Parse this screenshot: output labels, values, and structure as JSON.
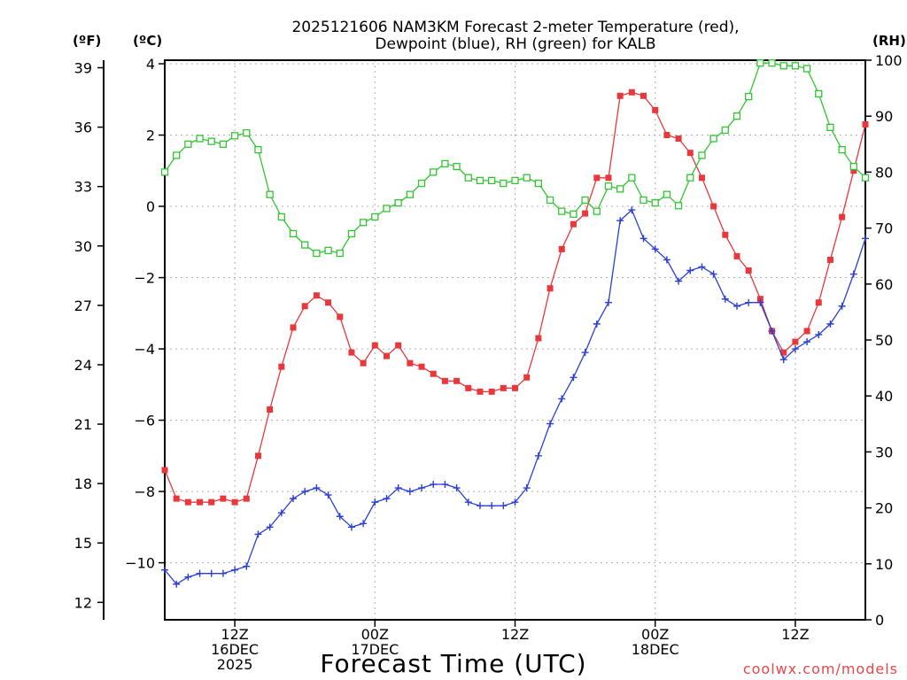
{
  "chart_data": {
    "type": "line",
    "title_line1": "2025121606 NAM3KM Forecast 2-meter Temperature (red),",
    "title_line2": "Dewpoint (blue), RH (green) for KALB",
    "xlabel": "Forecast Time (UTC)",
    "credit": "coolwx.com/models",
    "unit_f": "(ºF)",
    "unit_c": "(ºC)",
    "unit_rh": "(RH)",
    "x_range_hours": [
      0,
      60
    ],
    "y_celsius_range": [
      -11.6,
      4.1
    ],
    "y_rh_range": [
      0,
      100
    ],
    "x_ticks": [
      {
        "hour": 6,
        "lines": [
          "12Z",
          "16DEC",
          "2025"
        ]
      },
      {
        "hour": 18,
        "lines": [
          "00Z",
          "17DEC"
        ]
      },
      {
        "hour": 30,
        "lines": [
          "12Z"
        ]
      },
      {
        "hour": 42,
        "lines": [
          "00Z",
          "18DEC"
        ]
      },
      {
        "hour": 54,
        "lines": [
          "12Z"
        ]
      }
    ],
    "celsius_ticks": [
      {
        "value": 4,
        "label": "4"
      },
      {
        "value": 2,
        "label": "2"
      },
      {
        "value": 0,
        "label": "0"
      },
      {
        "value": -2,
        "label": "−2"
      },
      {
        "value": -4,
        "label": "−4"
      },
      {
        "value": -6,
        "label": "−6"
      },
      {
        "value": -8,
        "label": "−8"
      },
      {
        "value": -10,
        "label": "−10"
      }
    ],
    "fahrenheit_ticks": [
      {
        "value": 39,
        "label": "39"
      },
      {
        "value": 36,
        "label": "36"
      },
      {
        "value": 33,
        "label": "33"
      },
      {
        "value": 30,
        "label": "30"
      },
      {
        "value": 27,
        "label": "27"
      },
      {
        "value": 24,
        "label": "24"
      },
      {
        "value": 21,
        "label": "21"
      },
      {
        "value": 18,
        "label": "18"
      },
      {
        "value": 15,
        "label": "15"
      },
      {
        "value": 12,
        "label": "12"
      }
    ],
    "rh_ticks": [
      {
        "value": 100,
        "label": "100"
      },
      {
        "value": 90,
        "label": "90"
      },
      {
        "value": 80,
        "label": "80"
      },
      {
        "value": 70,
        "label": "70"
      },
      {
        "value": 60,
        "label": "60"
      },
      {
        "value": 50,
        "label": "50"
      },
      {
        "value": 40,
        "label": "40"
      },
      {
        "value": 30,
        "label": "30"
      },
      {
        "value": 20,
        "label": "20"
      },
      {
        "value": 10,
        "label": "10"
      },
      {
        "value": 0,
        "label": "0"
      }
    ],
    "hours": [
      0,
      1,
      2,
      3,
      4,
      5,
      6,
      7,
      8,
      9,
      10,
      11,
      12,
      13,
      14,
      15,
      16,
      17,
      18,
      19,
      20,
      21,
      22,
      23,
      24,
      25,
      26,
      27,
      28,
      29,
      30,
      31,
      32,
      33,
      34,
      35,
      36,
      37,
      38,
      39,
      40,
      41,
      42,
      43,
      44,
      45,
      46,
      47,
      48,
      49,
      50,
      51,
      52,
      53,
      54,
      55,
      56,
      57,
      58,
      59,
      60
    ],
    "series": [
      {
        "name": "Temperature (°C)",
        "color": "#e8383c",
        "marker": "filled-square",
        "axis": "celsius",
        "values": [
          -7.4,
          -8.2,
          -8.3,
          -8.3,
          -8.3,
          -8.2,
          -8.3,
          -8.2,
          -7.0,
          -5.7,
          -4.5,
          -3.4,
          -2.8,
          -2.5,
          -2.7,
          -3.1,
          -4.1,
          -4.4,
          -3.9,
          -4.2,
          -3.9,
          -4.4,
          -4.5,
          -4.7,
          -4.9,
          -4.9,
          -5.1,
          -5.2,
          -5.2,
          -5.1,
          -5.1,
          -4.8,
          -3.7,
          -2.3,
          -1.2,
          -0.5,
          -0.2,
          0.8,
          0.8,
          3.1,
          3.2,
          3.1,
          2.7,
          2.0,
          1.9,
          1.5,
          0.8,
          0.0,
          -0.8,
          -1.4,
          -1.8,
          -2.6,
          -3.5,
          -4.1,
          -3.8,
          -3.5,
          -2.7,
          -1.5,
          -0.3,
          1.0,
          2.3
        ]
      },
      {
        "name": "Dewpoint (°C)",
        "color": "#2b3fd6",
        "marker": "plus",
        "axis": "celsius",
        "values": [
          -10.2,
          -10.6,
          -10.4,
          -10.3,
          -10.3,
          -10.3,
          -10.2,
          -10.1,
          -9.2,
          -9.0,
          -8.6,
          -8.2,
          -8.0,
          -7.9,
          -8.1,
          -8.7,
          -9.0,
          -8.9,
          -8.3,
          -8.2,
          -7.9,
          -8.0,
          -7.9,
          -7.8,
          -7.8,
          -7.9,
          -8.3,
          -8.4,
          -8.4,
          -8.4,
          -8.3,
          -7.9,
          -7.0,
          -6.1,
          -5.4,
          -4.8,
          -4.1,
          -3.3,
          -2.7,
          -0.4,
          -0.1,
          -0.9,
          -1.2,
          -1.5,
          -2.1,
          -1.8,
          -1.7,
          -1.9,
          -2.6,
          -2.8,
          -2.7,
          -2.7,
          -3.5,
          -4.3,
          -4.0,
          -3.8,
          -3.6,
          -3.3,
          -2.8,
          -1.9,
          -0.9
        ]
      },
      {
        "name": "RH (%)",
        "color": "#31c631",
        "marker": "open-square",
        "axis": "rh",
        "values": [
          80,
          83,
          85,
          86,
          85.5,
          85,
          86.5,
          87,
          84,
          76,
          72,
          69,
          67,
          65.5,
          66,
          65.5,
          69,
          71,
          72,
          73.5,
          74.5,
          76,
          78,
          80,
          81.5,
          81,
          79,
          78.5,
          78.5,
          78,
          78.5,
          79,
          78,
          75,
          73,
          72.5,
          75,
          73,
          77.5,
          77,
          79,
          75,
          74.5,
          76,
          74,
          79,
          83,
          86,
          87.5,
          90,
          93.5,
          99.5,
          99.5,
          99,
          99,
          98.5,
          94,
          88,
          84,
          81,
          79
        ]
      }
    ]
  }
}
